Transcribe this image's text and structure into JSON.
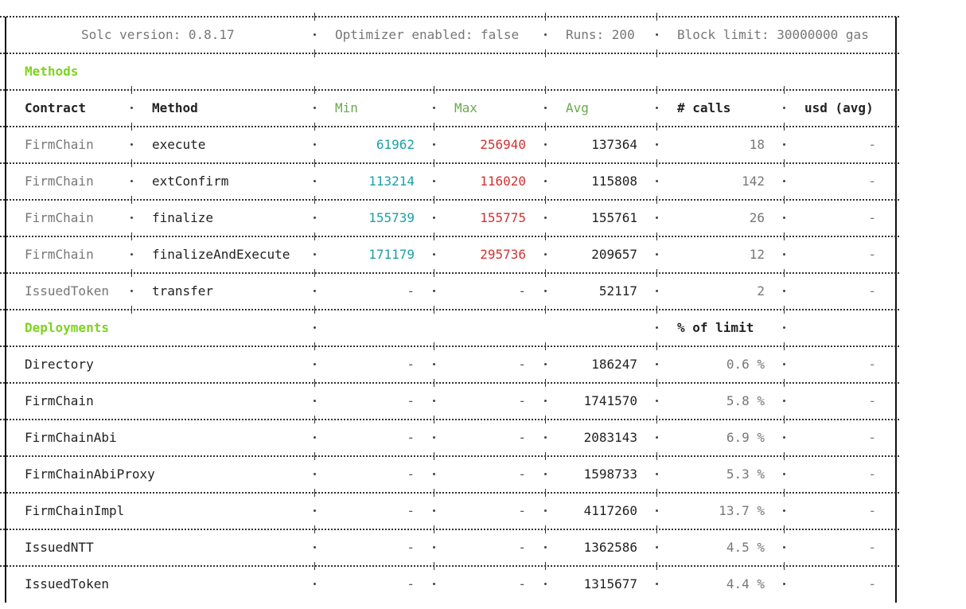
{
  "header": {
    "solc": "Solc version: 0.8.17",
    "optimizer": "Optimizer enabled: false",
    "runs": "Runs: 200",
    "block_limit": "Block limit: 30000000 gas"
  },
  "methods_section": {
    "title": "Methods",
    "columns": [
      "Contract",
      "Method",
      "Min",
      "Max",
      "Avg",
      "# calls",
      "usd (avg)"
    ],
    "rows": [
      {
        "contract": "FirmChain",
        "method": "execute",
        "min": "61962",
        "max": "256940",
        "avg": "137364",
        "calls": "18",
        "usd": "-"
      },
      {
        "contract": "FirmChain",
        "method": "extConfirm",
        "min": "113214",
        "max": "116020",
        "avg": "115808",
        "calls": "142",
        "usd": "-"
      },
      {
        "contract": "FirmChain",
        "method": "finalize",
        "min": "155739",
        "max": "155775",
        "avg": "155761",
        "calls": "26",
        "usd": "-"
      },
      {
        "contract": "FirmChain",
        "method": "finalizeAndExecute",
        "min": "171179",
        "max": "295736",
        "avg": "209657",
        "calls": "12",
        "usd": "-"
      },
      {
        "contract": "IssuedToken",
        "method": "transfer",
        "min": "-",
        "max": "-",
        "avg": "52117",
        "calls": "2",
        "usd": "-"
      }
    ]
  },
  "deployments_section": {
    "title": "Deployments",
    "limit_label": "% of limit",
    "rows": [
      {
        "contract": "Directory",
        "min": "-",
        "max": "-",
        "avg": "186247",
        "pct": "0.6 %",
        "usd": "-"
      },
      {
        "contract": "FirmChain",
        "min": "-",
        "max": "-",
        "avg": "1741570",
        "pct": "5.8 %",
        "usd": "-"
      },
      {
        "contract": "FirmChainAbi",
        "min": "-",
        "max": "-",
        "avg": "2083143",
        "pct": "6.9 %",
        "usd": "-"
      },
      {
        "contract": "FirmChainAbiProxy",
        "min": "-",
        "max": "-",
        "avg": "1598733",
        "pct": "5.3 %",
        "usd": "-"
      },
      {
        "contract": "FirmChainImpl",
        "min": "-",
        "max": "-",
        "avg": "4117260",
        "pct": "13.7 %",
        "usd": "-"
      },
      {
        "contract": "IssuedNTT",
        "min": "-",
        "max": "-",
        "avg": "1362586",
        "pct": "4.5 %",
        "usd": "-"
      },
      {
        "contract": "IssuedToken",
        "min": "-",
        "max": "-",
        "avg": "1315677",
        "pct": "4.4 %",
        "usd": "-"
      }
    ]
  },
  "colors": {
    "section_title": "#7ed321",
    "min": "#1aa1a6",
    "max": "#d63031",
    "header_green": "#6aa84f"
  }
}
